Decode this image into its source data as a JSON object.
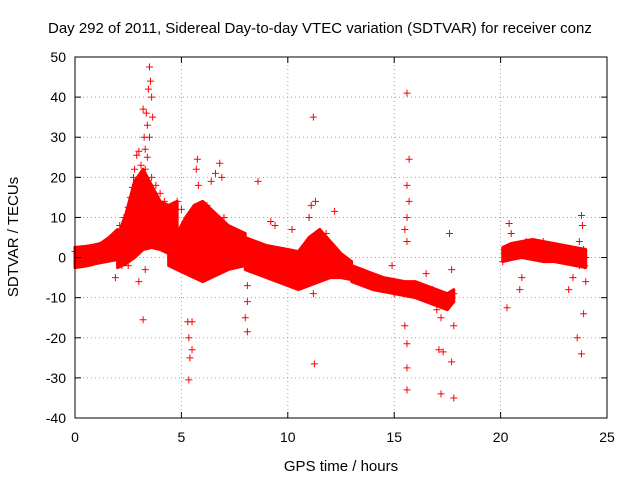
{
  "chart_data": {
    "type": "scatter",
    "title": "Day 292 of 2011, Sidereal Day-to-day VTEC variation (SDTVAR) for receiver conz",
    "xlabel": "GPS time / hours",
    "ylabel": "SDTVAR / TECUs",
    "xlim": [
      0,
      25
    ],
    "ylim": [
      -40,
      50
    ],
    "x_ticks": [
      0,
      5,
      10,
      15,
      20,
      25
    ],
    "y_ticks": [
      -40,
      -30,
      -20,
      -10,
      0,
      10,
      20,
      30,
      40,
      50
    ],
    "x_tick_labels": [
      "0",
      "5",
      "10",
      "15",
      "20",
      "25"
    ],
    "y_tick_labels": [
      "-40",
      "-30",
      "-20",
      "-10",
      "0",
      "10",
      "20",
      "30",
      "40",
      "50"
    ],
    "grid": true,
    "marker": "+",
    "color": "#ff0000",
    "series": [
      {
        "name": "SDTVAR",
        "points": [
          [
            0.0,
            1.5
          ],
          [
            0.2,
            1.8
          ],
          [
            0.4,
            1.0
          ],
          [
            0.6,
            2.0
          ],
          [
            0.8,
            1.2
          ],
          [
            1.0,
            2.5
          ],
          [
            1.2,
            1.6
          ],
          [
            1.4,
            3.0
          ],
          [
            1.6,
            2.2
          ],
          [
            1.8,
            4.5
          ],
          [
            1.9,
            3.0
          ],
          [
            2.0,
            5.5
          ],
          [
            2.1,
            8.0
          ],
          [
            2.2,
            6.0
          ],
          [
            2.3,
            10.0
          ],
          [
            2.4,
            8.5
          ],
          [
            2.5,
            12.5
          ],
          [
            2.6,
            15.0
          ],
          [
            2.7,
            17.5
          ],
          [
            2.75,
            20.0
          ],
          [
            2.8,
            22.0
          ],
          [
            2.9,
            25.5
          ],
          [
            3.0,
            26.5
          ],
          [
            3.1,
            23.0
          ],
          [
            3.2,
            37.0
          ],
          [
            3.25,
            30.0
          ],
          [
            3.3,
            27.0
          ],
          [
            3.35,
            36.0
          ],
          [
            3.4,
            33.0
          ],
          [
            3.45,
            42.0
          ],
          [
            3.5,
            47.5
          ],
          [
            3.55,
            44.0
          ],
          [
            3.6,
            40.0
          ],
          [
            3.65,
            35.0
          ],
          [
            3.5,
            30.0
          ],
          [
            3.4,
            25.0
          ],
          [
            3.3,
            22.0
          ],
          [
            3.6,
            20.0
          ],
          [
            3.8,
            18.0
          ],
          [
            4.0,
            16.0
          ],
          [
            4.2,
            14.0
          ],
          [
            4.5,
            12.0
          ],
          [
            3.2,
            -15.5
          ],
          [
            2.5,
            -2.0
          ],
          [
            3.0,
            -6.0
          ],
          [
            3.3,
            -3.0
          ],
          [
            1.9,
            -5.0
          ],
          [
            2.2,
            -2.0
          ],
          [
            4.8,
            14.0
          ],
          [
            5.0,
            12.0
          ],
          [
            5.2,
            8.0
          ],
          [
            5.4,
            6.0
          ],
          [
            5.6,
            10.0
          ],
          [
            5.7,
            22.0
          ],
          [
            5.75,
            24.5
          ],
          [
            5.8,
            18.0
          ],
          [
            5.9,
            12.0
          ],
          [
            6.0,
            8.0
          ],
          [
            6.2,
            13.0
          ],
          [
            6.4,
            19.0
          ],
          [
            6.6,
            21.0
          ],
          [
            6.8,
            23.5
          ],
          [
            6.9,
            20.0
          ],
          [
            7.0,
            10.0
          ],
          [
            7.5,
            6.0
          ],
          [
            8.0,
            4.0
          ],
          [
            5.3,
            -16.0
          ],
          [
            5.35,
            -20.0
          ],
          [
            5.4,
            -25.0
          ],
          [
            5.35,
            -30.5
          ],
          [
            5.5,
            -23.0
          ],
          [
            5.5,
            -16.0
          ],
          [
            4.0,
            4.0
          ],
          [
            4.5,
            2.0
          ],
          [
            5.0,
            0.0
          ],
          [
            5.5,
            -1.0
          ],
          [
            6.0,
            0.5
          ],
          [
            6.5,
            3.0
          ],
          [
            7.0,
            3.0
          ],
          [
            7.5,
            2.0
          ],
          [
            8.0,
            1.0
          ],
          [
            8.2,
            -3.0
          ],
          [
            8.1,
            -7.0
          ],
          [
            8.1,
            -11.0
          ],
          [
            8.0,
            -15.0
          ],
          [
            8.1,
            -18.5
          ],
          [
            8.4,
            0.0
          ],
          [
            8.6,
            19.0
          ],
          [
            8.8,
            0.0
          ],
          [
            9.0,
            -4.0
          ],
          [
            9.2,
            9.0
          ],
          [
            9.4,
            8.0
          ],
          [
            9.5,
            -3.0
          ],
          [
            9.7,
            -2.0
          ],
          [
            10.0,
            -4.0
          ],
          [
            10.2,
            7.0
          ],
          [
            10.4,
            -5.0
          ],
          [
            10.6,
            -7.0
          ],
          [
            10.8,
            -4.0
          ],
          [
            11.0,
            10.0
          ],
          [
            11.1,
            13.0
          ],
          [
            11.2,
            35.0
          ],
          [
            11.3,
            14.0
          ],
          [
            11.2,
            -9.0
          ],
          [
            11.25,
            -26.5
          ],
          [
            11.4,
            2.0
          ],
          [
            11.6,
            4.0
          ],
          [
            11.8,
            6.0
          ],
          [
            12.0,
            3.0
          ],
          [
            12.2,
            11.5
          ],
          [
            12.5,
            0.0
          ],
          [
            13.0,
            -3.0
          ],
          [
            13.5,
            -5.0
          ],
          [
            14.0,
            -6.0
          ],
          [
            14.5,
            -7.0
          ],
          [
            14.9,
            -2.0
          ],
          [
            15.0,
            -9.0
          ],
          [
            15.2,
            -8.0
          ],
          [
            15.5,
            -9.0
          ],
          [
            15.6,
            41.0
          ],
          [
            15.7,
            24.5
          ],
          [
            15.6,
            18.0
          ],
          [
            15.7,
            14.0
          ],
          [
            15.6,
            10.0
          ],
          [
            15.5,
            7.0
          ],
          [
            15.6,
            4.0
          ],
          [
            15.5,
            -17.0
          ],
          [
            15.6,
            -21.5
          ],
          [
            15.6,
            -27.5
          ],
          [
            15.6,
            -33.0
          ],
          [
            16.0,
            -9.0
          ],
          [
            16.5,
            -10.0
          ],
          [
            17.0,
            -13.0
          ],
          [
            17.2,
            -15.0
          ],
          [
            17.3,
            -12.0
          ],
          [
            16.5,
            -4.0
          ],
          [
            16.8,
            -8.0
          ],
          [
            17.1,
            -23.0
          ],
          [
            17.3,
            -23.5
          ],
          [
            17.2,
            -34.0
          ],
          [
            17.5,
            -11.0
          ],
          [
            17.6,
            6.0
          ],
          [
            17.7,
            -3.0
          ],
          [
            17.8,
            -17.0
          ],
          [
            17.7,
            -26.0
          ],
          [
            17.8,
            -35.0
          ],
          [
            17.8,
            -9.0
          ],
          [
            20.1,
            -1.0
          ],
          [
            20.2,
            2.0
          ],
          [
            20.3,
            -12.5
          ],
          [
            20.4,
            8.5
          ],
          [
            20.5,
            6.0
          ],
          [
            20.7,
            2.0
          ],
          [
            20.9,
            -8.0
          ],
          [
            21.0,
            -5.0
          ],
          [
            21.2,
            4.0
          ],
          [
            21.5,
            3.0
          ],
          [
            22.0,
            4.0
          ],
          [
            22.5,
            3.0
          ],
          [
            23.0,
            1.0
          ],
          [
            23.2,
            -8.0
          ],
          [
            23.4,
            -5.0
          ],
          [
            23.5,
            0.0
          ],
          [
            23.6,
            -20.0
          ],
          [
            23.7,
            4.0
          ],
          [
            23.8,
            10.5
          ],
          [
            23.85,
            8.0
          ],
          [
            23.9,
            -14.0
          ],
          [
            23.95,
            -2.0
          ],
          [
            24.0,
            -6.0
          ],
          [
            23.8,
            -24.0
          ],
          [
            23.7,
            -2.0
          ],
          [
            23.9,
            2.0
          ],
          [
            24.0,
            0.0
          ]
        ]
      }
    ],
    "dense_bands": [
      {
        "x": [
          0.0,
          0.4,
          0.8,
          1.2,
          1.6,
          2.0
        ],
        "lo": [
          -2.5,
          -2.2,
          -1.8,
          -1.0,
          0.0,
          1.0
        ],
        "hi": [
          2.5,
          2.6,
          3.0,
          3.5,
          5.0,
          7.0
        ]
      },
      {
        "x": [
          2.0,
          2.4,
          2.8,
          3.2,
          3.6,
          4.0,
          4.4,
          4.8
        ],
        "lo": [
          -2.5,
          -1.5,
          0.0,
          2.0,
          2.5,
          2.0,
          1.0,
          0.0
        ],
        "hi": [
          5.0,
          11.0,
          19.0,
          22.0,
          18.0,
          14.0,
          13.0,
          14.0
        ]
      },
      {
        "x": [
          4.4,
          4.8,
          5.2,
          5.6,
          6.0,
          6.4,
          6.8,
          7.2,
          7.6,
          8.0
        ],
        "lo": [
          -2.0,
          -3.0,
          -4.0,
          -5.0,
          -6.0,
          -5.0,
          -4.0,
          -3.0,
          -2.5,
          -2.0
        ],
        "hi": [
          3.0,
          6.0,
          10.0,
          13.0,
          14.0,
          12.0,
          10.0,
          8.0,
          7.0,
          6.0
        ]
      },
      {
        "x": [
          8.0,
          8.5,
          9.0,
          9.5,
          10.0,
          10.5,
          11.0,
          11.5,
          12.0,
          12.5,
          13.0
        ],
        "lo": [
          -3.0,
          -4.0,
          -5.0,
          -6.0,
          -7.0,
          -8.0,
          -7.0,
          -6.0,
          -5.0,
          -5.0,
          -5.5
        ],
        "hi": [
          5.0,
          4.0,
          3.0,
          2.5,
          2.0,
          1.5,
          5.0,
          7.0,
          4.0,
          1.0,
          -1.0
        ]
      },
      {
        "x": [
          13.0,
          13.5,
          14.0,
          14.5,
          15.0,
          15.5,
          16.0,
          16.5,
          17.0,
          17.5,
          17.8
        ],
        "lo": [
          -6.0,
          -7.0,
          -8.0,
          -8.5,
          -9.0,
          -9.5,
          -10.0,
          -11.0,
          -12.0,
          -13.0,
          -11.0
        ],
        "hi": [
          -2.0,
          -3.0,
          -4.0,
          -5.0,
          -5.5,
          -6.0,
          -6.0,
          -7.0,
          -8.0,
          -9.0,
          -8.0
        ]
      },
      {
        "x": [
          20.1,
          20.5,
          21.0,
          21.5,
          22.0,
          22.5,
          23.0,
          23.5,
          24.0
        ],
        "lo": [
          -1.0,
          -0.5,
          0.0,
          -0.5,
          -1.0,
          -1.0,
          -1.5,
          -2.0,
          -2.5
        ],
        "hi": [
          2.5,
          3.5,
          4.0,
          4.5,
          4.0,
          3.5,
          3.0,
          2.5,
          2.0
        ]
      },
      {
        "x": [
          0.0,
          0.5,
          1.0,
          1.5,
          2.0,
          2.4
        ],
        "lo": [
          -2.5,
          -2.0,
          -1.5,
          -1.0,
          -0.5,
          0.0
        ],
        "hi": [
          2.5,
          2.8,
          3.2,
          4.0,
          5.5,
          7.5
        ]
      }
    ]
  }
}
